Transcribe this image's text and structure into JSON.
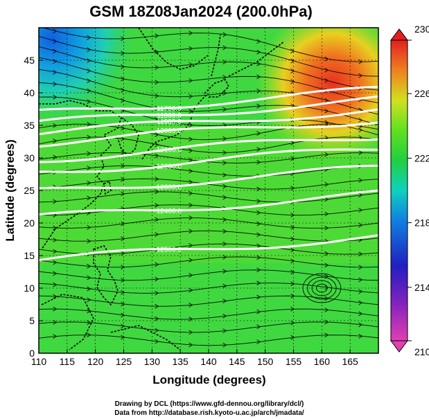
{
  "chart_data": {
    "type": "heatmap",
    "title": "GSM 18Z08Jan2024 (200.0hPa)",
    "xlabel": "Longitude (degrees)",
    "ylabel": "Latitude  (degrees)",
    "xlim": [
      110,
      170
    ],
    "ylim": [
      0,
      50
    ],
    "x_ticks": [
      "110",
      "115",
      "120",
      "125",
      "130",
      "135",
      "140",
      "145",
      "150",
      "155",
      "160",
      "165"
    ],
    "y_ticks": [
      "0",
      "5",
      "10",
      "15",
      "20",
      "25",
      "30",
      "35",
      "40",
      "45"
    ],
    "colorbar": {
      "range": [
        210,
        230
      ],
      "ticks": [
        "210",
        "214",
        "218",
        "222",
        "226",
        "230"
      ],
      "colors": [
        "#e040b0",
        "#5010c0",
        "#1060e0",
        "#10c0d0",
        "#20d040",
        "#80e020",
        "#f0e020",
        "#f08020",
        "#e02020"
      ]
    },
    "background_field_approx": [
      {
        "region": "northwest corner (110-120E, 45-50N)",
        "value": 217
      },
      {
        "region": "northeast (155-165E, 38-47N)",
        "value": 229
      },
      {
        "region": "tropics and subtropics",
        "value": 222.5
      }
    ],
    "height_contours": [
      {
        "label": "12500.0",
        "lat_at_130E": 15.5
      },
      {
        "label": "12400.0",
        "lat_at_130E": 22
      },
      {
        "label": "12300.0",
        "lat_at_130E": 26
      },
      {
        "label": "12200.0",
        "lat_at_130E": 29
      },
      {
        "label": "12100.0",
        "lat_at_130E": 31
      },
      {
        "label": "12000.0",
        "lat_at_130E": 33.5
      },
      {
        "label": "11900.0",
        "lat_at_130E": 35
      },
      {
        "label": "11800.0",
        "lat_at_130E": 36.5
      },
      {
        "label": "11700.0",
        "lat_at_130E": 38
      }
    ],
    "streamlines": "westerly jet across mid latitudes, vortex near 160E 10N",
    "credits": [
      "Drawing by DCL (https://www.gfd-dennou.org/library/dcl/)",
      "Data from http://database.rish.kyoto-u.ac.jp/arch/jmadata/"
    ],
    "grid": true,
    "legend": "colorbar right"
  }
}
